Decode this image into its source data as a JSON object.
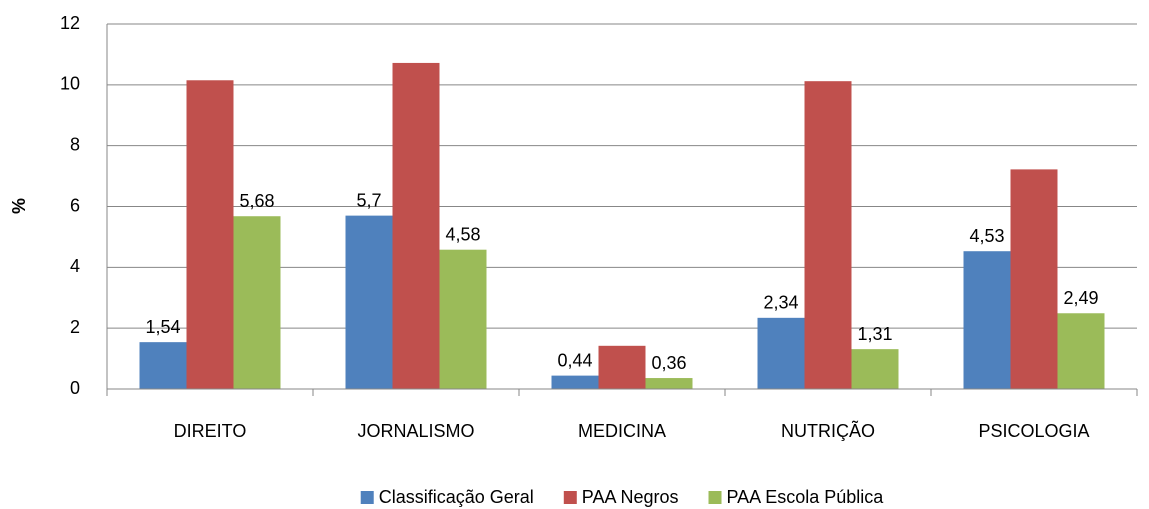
{
  "chart_data": {
    "type": "bar",
    "ylabel": "%",
    "categories": [
      "DIREITO",
      "JORNALISMO",
      "MEDICINA",
      "NUTRIÇÃO",
      "PSICOLOGIA"
    ],
    "series": [
      {
        "name": "Classificação Geral",
        "color": "#4f81bd",
        "values": [
          1.54,
          5.7,
          0.44,
          2.34,
          4.53
        ],
        "value_labels": [
          "1,54",
          "5,7",
          "0,44",
          "2,34",
          "4,53"
        ]
      },
      {
        "name": "PAA Negros",
        "color": "#c0504d",
        "values": [
          10.15,
          10.72,
          1.42,
          10.12,
          7.22
        ]
      },
      {
        "name": "PAA Escola Pública",
        "color": "#9bbb59",
        "values": [
          5.68,
          4.58,
          0.36,
          1.31,
          2.49
        ],
        "value_labels": [
          "5,68",
          "4,58",
          "0,36",
          "1,31",
          "2,49"
        ]
      }
    ],
    "ylim": [
      0,
      12
    ],
    "yticks": [
      0,
      2,
      4,
      6,
      8,
      10,
      12
    ],
    "grid": true,
    "legend": "bottom"
  }
}
